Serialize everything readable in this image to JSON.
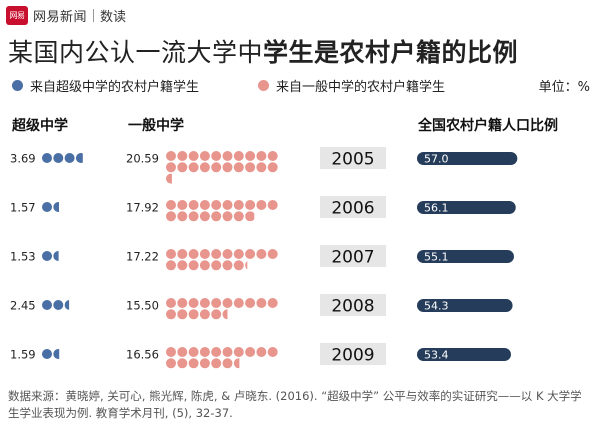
{
  "brand": {
    "logo_text": "网易",
    "name": "网易新闻",
    "sub": "数读"
  },
  "title": {
    "normal": "某国内公认一流大学中",
    "bold": "学生是农村户籍的比例"
  },
  "legend": {
    "super": "来自超级中学的农村户籍学生",
    "general": "来自一般中学的农村户籍学生",
    "unit": "单位：%"
  },
  "columns": {
    "super": "超级中学",
    "general": "一般中学",
    "rural": "全国农村户籍人口比例"
  },
  "colors": {
    "super": "#4a6fa5",
    "general": "#e8958d",
    "bar": "#253c5b",
    "year_bg": "#e6e6e6"
  },
  "chart_data": {
    "type": "dot-matrix",
    "title": "某国内公认一流大学中学生是农村户籍的比例",
    "unit": "%",
    "years": [
      "2005",
      "2006",
      "2007",
      "2008",
      "2009"
    ],
    "series": [
      {
        "name": "来自超级中学的农村户籍学生",
        "values": [
          3.69,
          1.57,
          1.53,
          2.45,
          1.59
        ]
      },
      {
        "name": "来自一般中学的农村户籍学生",
        "values": [
          20.59,
          17.92,
          17.22,
          15.5,
          16.56
        ]
      },
      {
        "name": "全国农村户籍人口比例",
        "values": [
          57.0,
          56.1,
          55.1,
          54.3,
          53.4
        ]
      }
    ],
    "value_labels": {
      "super": [
        "3.69",
        "1.57",
        "1.53",
        "2.45",
        "1.59"
      ],
      "general": [
        "20.59",
        "17.92",
        "17.22",
        "15.50",
        "16.56"
      ],
      "rural": [
        "57.0",
        "56.1",
        "55.1",
        "54.3",
        "53.4"
      ]
    },
    "dot_unit": 1,
    "rural_bar_max": 100
  },
  "source": "数据来源：黄晓婷, 关可心, 熊光辉, 陈虎, & 卢晓东. (2016). “超级中学” 公平与效率的实证研究——以 K 大学学生学业表现为例. 教育学术月刊, (5), 32-37."
}
